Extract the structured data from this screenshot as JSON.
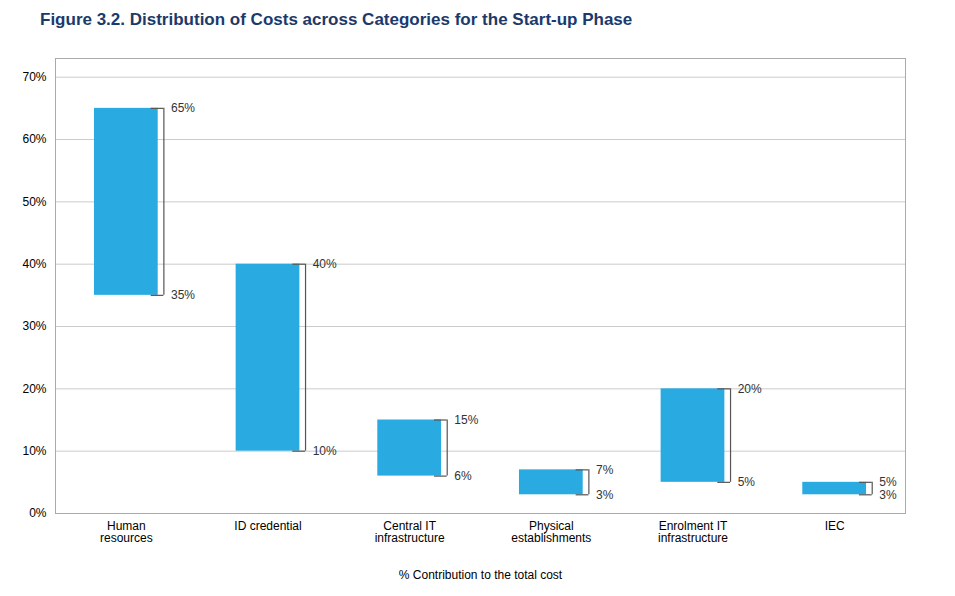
{
  "chart_data": {
    "type": "bar",
    "title": "Figure 3.2. Distribution of Costs across Categories for the Start-up Phase",
    "xlabel": "% Contribution to the total cost",
    "categories": [
      "Human\nresources",
      "ID credential",
      "Central IT\ninfrastructure",
      "Physical\nestablishments",
      "Enrolment IT\ninfrastructure",
      "IEC"
    ],
    "low": [
      35,
      10,
      6,
      3,
      5,
      3
    ],
    "high": [
      65,
      40,
      15,
      7,
      20,
      5
    ],
    "low_labels": [
      "35%",
      "10%",
      "6%",
      "3%",
      "5%",
      "3%"
    ],
    "high_labels": [
      "65%",
      "40%",
      "15%",
      "7%",
      "20%",
      "5%"
    ],
    "color": "#29ABE2",
    "ylim": [
      0,
      73
    ],
    "yticks": [
      {
        "value": 0,
        "label": "0%"
      },
      {
        "value": 10,
        "label": "10%"
      },
      {
        "value": 20,
        "label": "20%"
      },
      {
        "value": 30,
        "label": "30%"
      },
      {
        "value": 40,
        "label": "40%"
      },
      {
        "value": 50,
        "label": "50%"
      },
      {
        "value": 60,
        "label": "60%"
      },
      {
        "value": 70,
        "label": "70%"
      }
    ],
    "grid": true,
    "data_labels": true
  }
}
